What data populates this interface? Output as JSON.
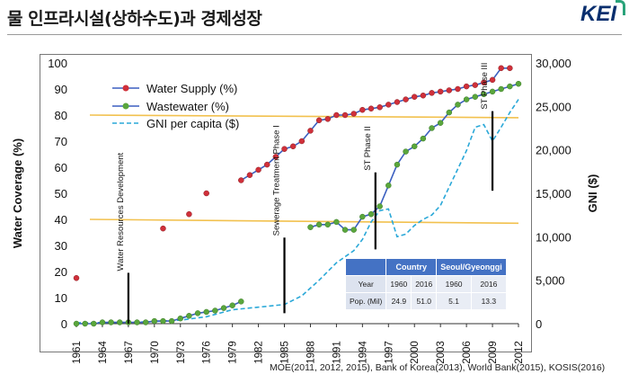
{
  "header": {
    "title": "물 인프라시설(상하수도)과 경제성장",
    "logo": "KEI"
  },
  "source_note": "MOE(2011, 2012, 2015), Bank of Korea(2013), World Bank(2015), KOSIS(2016)",
  "table": {
    "header_blank": "",
    "country_label": "Country",
    "seoul_label": "Seoul/Gyeonggi",
    "row_year_label": "Year",
    "years": [
      "1960",
      "2016",
      "1960",
      "2016"
    ],
    "row_pop_label": "Pop. (Mil)",
    "pops": [
      "24.9",
      "51.0",
      "5.1",
      "13.3"
    ]
  },
  "chart_data": {
    "type": "line",
    "ylabel": "Water Coverage (%)",
    "y2label": "GNI ($)",
    "ylim": [
      0,
      100
    ],
    "y2lim": [
      0,
      30000
    ],
    "xlim": [
      1961,
      2012
    ],
    "x_ticks": [
      "1961",
      "1964",
      "1967",
      "1970",
      "1973",
      "1976",
      "1979",
      "1982",
      "1985",
      "1988",
      "1991",
      "1994",
      "1997",
      "2000",
      "2003",
      "2006",
      "2009",
      "2012"
    ],
    "y_ticks": [
      "0",
      "10",
      "20",
      "30",
      "40",
      "50",
      "60",
      "70",
      "80",
      "90",
      "100"
    ],
    "y2_ticks": [
      "0",
      "5,000",
      "10,000",
      "15,000",
      "20,000",
      "25,000",
      "30,000"
    ],
    "legend": [
      "Water Supply (%)",
      "Wastewater (%)",
      "GNI per capita ($)"
    ],
    "series": [
      {
        "name": "Water Supply (%)",
        "color": "#3b5fc0",
        "marker_color": "#d0303a",
        "x": [
          1961,
          1971,
          1974,
          1976,
          1980,
          1981,
          1982,
          1983,
          1984,
          1985,
          1986,
          1987,
          1988,
          1989,
          1990,
          1991,
          1992,
          1993,
          1994,
          1995,
          1996,
          1997,
          1998,
          1999,
          2000,
          2001,
          2002,
          2003,
          2004,
          2005,
          2006,
          2007,
          2008,
          2009,
          2010,
          2011
        ],
        "y": [
          17.5,
          36.5,
          42,
          50,
          55,
          57,
          59,
          61,
          64,
          67,
          68,
          70,
          74,
          78,
          78.5,
          80,
          80,
          80.5,
          82,
          82.5,
          83,
          84,
          85,
          86,
          87,
          87.5,
          88.5,
          89,
          89.5,
          90,
          91,
          91.5,
          92.5,
          93.5,
          98,
          98
        ],
        "connected_from": 1980
      },
      {
        "name": "Wastewater (%)",
        "color": "#3b5fc0",
        "marker_color": "#5aa63c",
        "x": [
          1961,
          1962,
          1963,
          1964,
          1965,
          1966,
          1967,
          1968,
          1969,
          1970,
          1971,
          1972,
          1973,
          1974,
          1975,
          1976,
          1977,
          1978,
          1979,
          1980,
          1988,
          1989,
          1990,
          1991,
          1992,
          1993,
          1994,
          1995,
          1996,
          1997,
          1998,
          1999,
          2000,
          2001,
          2002,
          2003,
          2004,
          2005,
          2006,
          2007,
          2008,
          2009,
          2010,
          2011,
          2012
        ],
        "y": [
          0,
          0,
          0,
          0.5,
          0.5,
          0.5,
          0.5,
          0.5,
          0.5,
          1,
          1,
          1,
          2,
          3,
          4,
          4.5,
          5,
          6,
          7,
          8.5,
          37,
          38,
          38,
          39,
          36,
          36,
          41,
          42,
          45,
          53,
          61,
          66,
          68,
          71,
          75,
          77,
          81,
          84,
          86,
          87,
          88,
          89,
          90,
          91,
          92
        ]
      },
      {
        "name": "GNI per capita ($)",
        "color": "#2aa8d8",
        "style": "dashed",
        "axis": "right",
        "x": [
          1961,
          1964,
          1967,
          1970,
          1973,
          1976,
          1979,
          1981,
          1983,
          1985,
          1987,
          1989,
          1991,
          1993,
          1994,
          1995,
          1996,
          1997,
          1998,
          1999,
          2000,
          2001,
          2002,
          2003,
          2004,
          2005,
          2006,
          2007,
          2008,
          2009,
          2010,
          2011,
          2012
        ],
        "y": [
          100,
          120,
          150,
          250,
          400,
          800,
          1600,
          1800,
          2000,
          2200,
          3200,
          5000,
          7000,
          8400,
          9700,
          11700,
          13000,
          13200,
          10000,
          10300,
          11300,
          12000,
          12500,
          13600,
          15700,
          17800,
          19900,
          22600,
          22900,
          21000,
          22600,
          24300,
          25800
        ]
      }
    ],
    "reference_lines": [
      {
        "axis": "left",
        "from": 80,
        "to": 79,
        "color": "#f2c14e"
      },
      {
        "axis": "left",
        "from": 40,
        "to": 38.5,
        "color": "#f2c14e"
      }
    ],
    "annotations": [
      {
        "text": "Water Resources Development",
        "x": 1967,
        "bar_from": 0,
        "bar_to": 19.5
      },
      {
        "text": "Sewerage Treatment Phase I",
        "x": 1985,
        "bar_from": 4,
        "bar_to": 33
      },
      {
        "text": "ST Phase II",
        "x": 1995.5,
        "bar_from": 28.5,
        "bar_to": 58
      },
      {
        "text": "ST Phase III",
        "x": 2009,
        "bar_from": 51,
        "bar_to": 81.5
      }
    ],
    "grid": false,
    "legend_position": "top-left"
  }
}
